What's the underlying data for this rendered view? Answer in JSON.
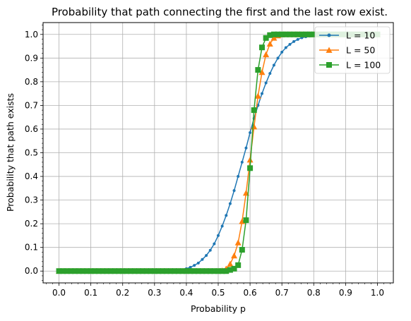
{
  "chart_data": {
    "type": "line",
    "title": "Probability that path connecting the first and the last row exist.",
    "xlabel": "Probability p",
    "ylabel": "Probability that path exists",
    "xlim": [
      -0.05,
      1.05
    ],
    "ylim": [
      -0.05,
      1.05
    ],
    "xticks": [
      "0.0",
      "0.1",
      "0.2",
      "0.3",
      "0.4",
      "0.5",
      "0.6",
      "0.7",
      "0.8",
      "0.9",
      "1.0"
    ],
    "yticks": [
      "0.0",
      "0.1",
      "0.2",
      "0.3",
      "0.4",
      "0.5",
      "0.6",
      "0.7",
      "0.8",
      "0.9",
      "1.0"
    ],
    "grid": true,
    "legend_position": "top-right",
    "x": [
      0.0,
      0.0125,
      0.025,
      0.0375,
      0.05,
      0.0625,
      0.075,
      0.0875,
      0.1,
      0.1125,
      0.125,
      0.1375,
      0.15,
      0.1625,
      0.175,
      0.1875,
      0.2,
      0.2125,
      0.225,
      0.2375,
      0.25,
      0.2625,
      0.275,
      0.2875,
      0.3,
      0.3125,
      0.325,
      0.3375,
      0.35,
      0.3625,
      0.375,
      0.3875,
      0.4,
      0.4125,
      0.425,
      0.4375,
      0.45,
      0.4625,
      0.475,
      0.4875,
      0.5,
      0.5125,
      0.525,
      0.5375,
      0.55,
      0.5625,
      0.575,
      0.5875,
      0.6,
      0.6125,
      0.625,
      0.6375,
      0.65,
      0.6625,
      0.675,
      0.6875,
      0.7,
      0.7125,
      0.725,
      0.7375,
      0.75,
      0.7625,
      0.775,
      0.7875,
      0.8,
      0.8125,
      0.825,
      0.8375,
      0.85,
      0.8625,
      0.875,
      0.8875,
      0.9,
      0.9125,
      0.925,
      0.9375,
      0.95,
      0.9625,
      0.975,
      0.9875,
      1.0
    ],
    "series": [
      {
        "name": "L = 10",
        "color": "#1f77b4",
        "marker": "circle",
        "values": [
          0,
          0,
          0,
          0,
          0,
          0,
          0,
          0,
          0,
          0,
          0,
          0,
          0,
          0,
          0,
          0,
          0,
          0,
          0,
          0,
          0,
          0,
          0,
          0,
          0,
          0,
          0,
          0,
          0,
          0,
          0.002,
          0.005,
          0.01,
          0.016,
          0.024,
          0.034,
          0.049,
          0.066,
          0.088,
          0.115,
          0.15,
          0.19,
          0.235,
          0.285,
          0.34,
          0.4,
          0.46,
          0.52,
          0.585,
          0.645,
          0.7,
          0.75,
          0.795,
          0.835,
          0.87,
          0.9,
          0.925,
          0.944,
          0.958,
          0.97,
          0.979,
          0.986,
          0.99,
          0.993,
          0.995,
          0.997,
          0.998,
          0.999,
          1,
          1,
          1,
          1,
          1,
          1,
          1,
          1,
          1,
          1,
          1,
          1,
          1
        ]
      },
      {
        "name": "L = 50",
        "color": "#ff7f0e",
        "marker": "triangle",
        "values": [
          0,
          0,
          0,
          0,
          0,
          0,
          0,
          0,
          0,
          0,
          0,
          0,
          0,
          0,
          0,
          0,
          0,
          0,
          0,
          0,
          0,
          0,
          0,
          0,
          0,
          0,
          0,
          0,
          0,
          0,
          0,
          0,
          0,
          0,
          0,
          0,
          0,
          0,
          0,
          0,
          0,
          0.002,
          0.01,
          0.03,
          0.065,
          0.12,
          0.21,
          0.33,
          0.47,
          0.61,
          0.74,
          0.84,
          0.915,
          0.96,
          0.985,
          0.995,
          0.999,
          1,
          1,
          1,
          1,
          1,
          1,
          1,
          1,
          1,
          1,
          1,
          1,
          1,
          1,
          1,
          1,
          1,
          1,
          1,
          1,
          1,
          1,
          1,
          1
        ]
      },
      {
        "name": "L = 100",
        "color": "#2ca02c",
        "marker": "square",
        "values": [
          0,
          0,
          0,
          0,
          0,
          0,
          0,
          0,
          0,
          0,
          0,
          0,
          0,
          0,
          0,
          0,
          0,
          0,
          0,
          0,
          0,
          0,
          0,
          0,
          0,
          0,
          0,
          0,
          0,
          0,
          0,
          0,
          0,
          0,
          0,
          0,
          0,
          0,
          0,
          0,
          0,
          0,
          0,
          0.005,
          0.01,
          0.025,
          0.09,
          0.215,
          0.435,
          0.68,
          0.85,
          0.945,
          0.985,
          0.997,
          1,
          1,
          1,
          1,
          1,
          1,
          1,
          1,
          1,
          1,
          1,
          1,
          1,
          1,
          1,
          1,
          1,
          1,
          1,
          1,
          1,
          1,
          1,
          1,
          1,
          1,
          1
        ]
      }
    ]
  }
}
